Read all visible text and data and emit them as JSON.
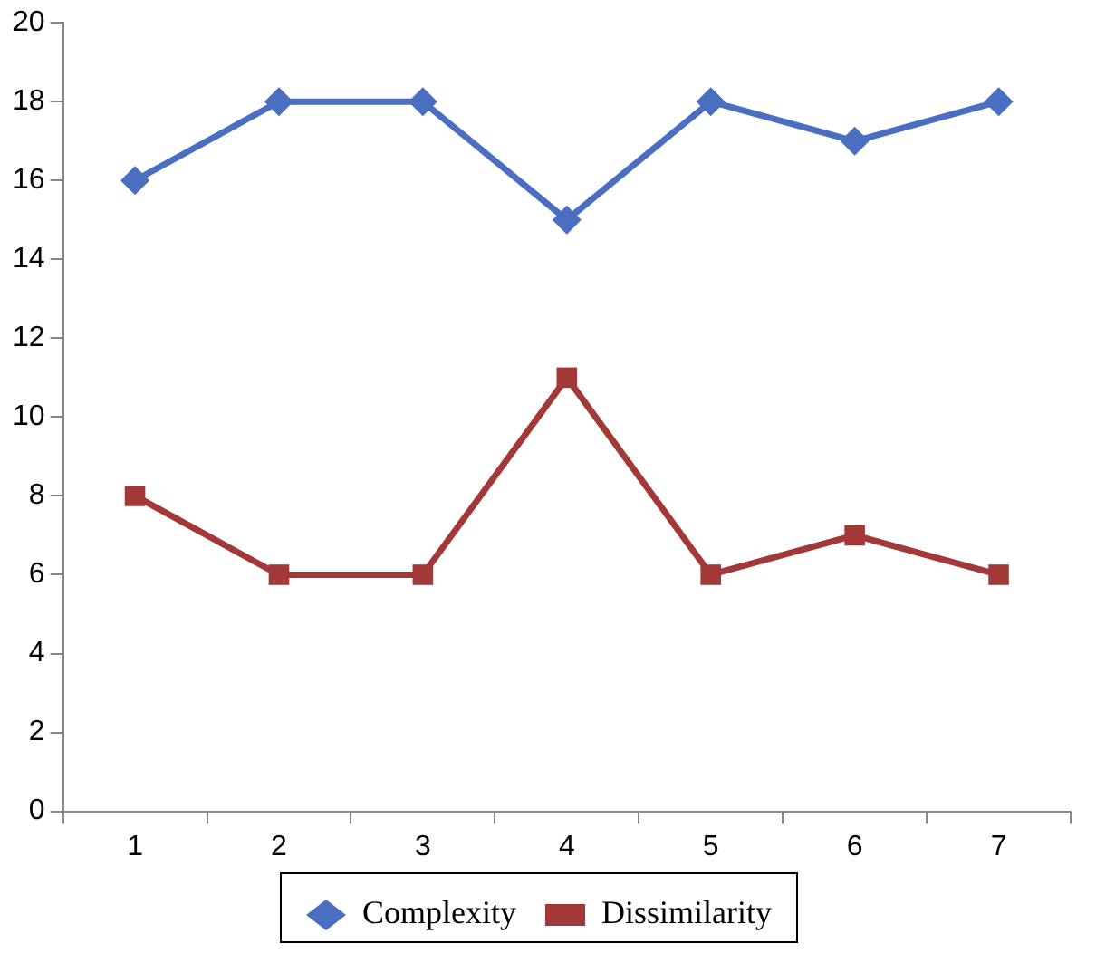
{
  "chart_data": {
    "type": "line",
    "categories": [
      "1",
      "2",
      "3",
      "4",
      "5",
      "6",
      "7"
    ],
    "series": [
      {
        "name": "Complexity",
        "color": "#4a6ec0",
        "values": [
          16,
          18,
          18,
          15,
          18,
          17,
          18
        ],
        "marker": "diamond"
      },
      {
        "name": "Dissimilarity",
        "color": "#a33838",
        "values": [
          8,
          6,
          6,
          11,
          6,
          7,
          6
        ],
        "marker": "square"
      }
    ],
    "ylim": [
      0,
      20
    ],
    "yticks": [
      0,
      2,
      4,
      6,
      8,
      10,
      12,
      14,
      16,
      18,
      20
    ],
    "grid": false,
    "legend": "bottom",
    "line_style": "solid"
  }
}
